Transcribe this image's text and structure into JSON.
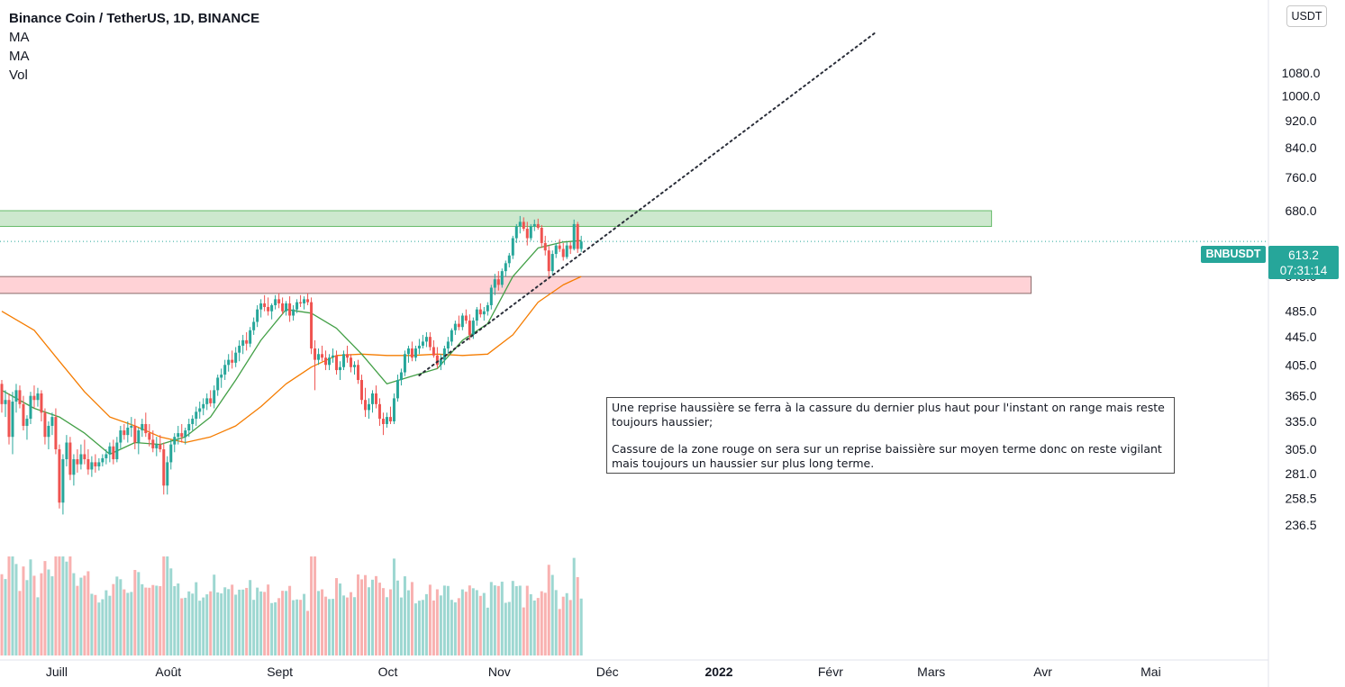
{
  "header": {
    "title": "Binance Coin / TetherUS, 1D, BINANCE",
    "indicators": [
      "MA",
      "MA",
      "Vol"
    ]
  },
  "price_scale": {
    "currency": "USDT",
    "symbol": "BNBUSDT",
    "last_price": "613.2",
    "countdown": "07:31:14"
  },
  "annotation": {
    "line1": "Une reprise haussière se ferra à la cassure du dernier plus haut pour l'instant on range mais reste toujours haussier;",
    "line2": "Cassure de la zone rouge on sera sur un reprise baissière sur moyen terme donc on reste vigilant mais toujours un haussier sur plus long terme."
  },
  "colors": {
    "up": "#26a69a",
    "down": "#ef5350",
    "ma_fast": "#43a047",
    "ma_slow": "#f57c00",
    "resistance_zone": "#c8e6c9",
    "support_zone": "#ffcdd2"
  },
  "chart_data": {
    "type": "candlestick",
    "title": "Binance Coin / TetherUS, 1D, BINANCE",
    "y_scale": "log",
    "y_ticks": [
      "1080.0",
      "1000.0",
      "920.0",
      "840.0",
      "760.0",
      "680.0",
      "545.0",
      "485.0",
      "445.0",
      "405.0",
      "365.0",
      "335.0",
      "305.0",
      "281.0",
      "258.5",
      "236.5"
    ],
    "x_ticks": [
      "Juill",
      "Août",
      "Sept",
      "Oct",
      "Nov",
      "Déc",
      "2022",
      "Févr",
      "Mars",
      "Avr",
      "Mai"
    ],
    "x_range": [
      "2021-06-19",
      "2022-05-31"
    ],
    "zones": [
      {
        "name": "resistance",
        "low": 645,
        "high": 680,
        "from": "2021-06-19",
        "to": "2022-03-21",
        "color": "green"
      },
      {
        "name": "support",
        "low": 515,
        "high": 545,
        "from": "2021-06-19",
        "to": "2022-04-01",
        "color": "red"
      }
    ],
    "trendline": {
      "from": {
        "date": "2021-10-13",
        "price": 391
      },
      "to": {
        "date": "2022-02-17",
        "price": 1240
      },
      "style": "dotted"
    },
    "candles": [
      [
        "2021-06-19",
        380,
        385,
        345,
        355
      ],
      [
        "2021-06-20",
        355,
        372,
        340,
        360
      ],
      [
        "2021-06-21",
        360,
        368,
        310,
        318
      ],
      [
        "2021-06-22",
        318,
        370,
        300,
        358
      ],
      [
        "2021-06-23",
        358,
        380,
        345,
        372
      ],
      [
        "2021-06-24",
        372,
        378,
        350,
        355
      ],
      [
        "2021-06-25",
        355,
        365,
        325,
        330
      ],
      [
        "2021-06-26",
        330,
        342,
        315,
        338
      ],
      [
        "2021-06-27",
        338,
        370,
        332,
        365
      ],
      [
        "2021-06-28",
        365,
        378,
        350,
        360
      ],
      [
        "2021-06-29",
        360,
        375,
        352,
        368
      ],
      [
        "2021-06-30",
        368,
        372,
        335,
        345
      ],
      [
        "2021-07-01",
        345,
        350,
        310,
        318
      ],
      [
        "2021-07-02",
        318,
        335,
        305,
        330
      ],
      [
        "2021-07-03",
        330,
        345,
        320,
        340
      ],
      [
        "2021-07-04",
        340,
        350,
        300,
        305
      ],
      [
        "2021-07-05",
        305,
        310,
        250,
        255
      ],
      [
        "2021-07-06",
        255,
        300,
        245,
        295
      ],
      [
        "2021-07-07",
        295,
        320,
        288,
        312
      ],
      [
        "2021-07-08",
        312,
        318,
        275,
        280
      ],
      [
        "2021-07-09",
        280,
        300,
        270,
        295
      ],
      [
        "2021-07-10",
        295,
        305,
        282,
        290
      ],
      [
        "2021-07-11",
        290,
        310,
        285,
        300
      ],
      [
        "2021-07-12",
        300,
        315,
        290,
        295
      ],
      [
        "2021-07-13",
        295,
        305,
        280,
        285
      ],
      [
        "2021-07-14",
        285,
        298,
        278,
        292
      ],
      [
        "2021-07-15",
        292,
        300,
        282,
        288
      ],
      [
        "2021-07-16",
        288,
        296,
        284,
        292
      ],
      [
        "2021-07-17",
        292,
        300,
        288,
        296
      ],
      [
        "2021-07-18",
        296,
        305,
        290,
        300
      ],
      [
        "2021-07-19",
        300,
        312,
        292,
        308
      ],
      [
        "2021-07-20",
        308,
        315,
        290,
        295
      ],
      [
        "2021-07-21",
        295,
        318,
        292,
        312
      ],
      [
        "2021-07-22",
        312,
        330,
        306,
        325
      ],
      [
        "2021-07-23",
        325,
        332,
        315,
        320
      ],
      [
        "2021-07-24",
        320,
        335,
        312,
        328
      ],
      [
        "2021-07-25",
        328,
        340,
        318,
        330
      ],
      [
        "2021-07-26",
        330,
        338,
        305,
        312
      ],
      [
        "2021-07-27",
        312,
        328,
        300,
        325
      ],
      [
        "2021-07-28",
        325,
        338,
        318,
        332
      ],
      [
        "2021-07-29",
        332,
        345,
        318,
        322
      ],
      [
        "2021-07-30",
        322,
        332,
        308,
        315
      ],
      [
        "2021-07-31",
        315,
        325,
        302,
        306
      ],
      [
        "2021-08-01",
        306,
        318,
        298,
        310
      ],
      [
        "2021-08-02",
        310,
        320,
        302,
        305
      ],
      [
        "2021-08-03",
        305,
        312,
        262,
        270
      ],
      [
        "2021-08-04",
        270,
        298,
        262,
        292
      ],
      [
        "2021-08-05",
        292,
        315,
        285,
        310
      ],
      [
        "2021-08-06",
        310,
        322,
        302,
        318
      ],
      [
        "2021-08-07",
        318,
        330,
        310,
        322
      ],
      [
        "2021-08-08",
        322,
        332,
        312,
        318
      ],
      [
        "2021-08-09",
        318,
        328,
        310,
        325
      ],
      [
        "2021-08-10",
        325,
        338,
        318,
        332
      ],
      [
        "2021-08-11",
        332,
        342,
        325,
        338
      ],
      [
        "2021-08-12",
        338,
        352,
        330,
        346
      ],
      [
        "2021-08-13",
        346,
        358,
        338,
        350
      ],
      [
        "2021-08-14",
        350,
        362,
        342,
        355
      ],
      [
        "2021-08-15",
        355,
        368,
        348,
        362
      ],
      [
        "2021-08-16",
        362,
        372,
        352,
        356
      ],
      [
        "2021-08-17",
        356,
        378,
        350,
        372
      ],
      [
        "2021-08-18",
        372,
        392,
        365,
        388
      ],
      [
        "2021-08-19",
        388,
        400,
        375,
        392
      ],
      [
        "2021-08-20",
        392,
        412,
        385,
        405
      ],
      [
        "2021-08-21",
        405,
        420,
        396,
        412
      ],
      [
        "2021-08-22",
        412,
        425,
        400,
        408
      ],
      [
        "2021-08-23",
        408,
        430,
        402,
        422
      ],
      [
        "2021-08-24",
        422,
        440,
        410,
        432
      ],
      [
        "2021-08-25",
        432,
        448,
        420,
        440
      ],
      [
        "2021-08-26",
        440,
        452,
        425,
        435
      ],
      [
        "2021-08-27",
        435,
        460,
        430,
        455
      ],
      [
        "2021-08-28",
        455,
        475,
        448,
        468
      ],
      [
        "2021-08-29",
        468,
        495,
        460,
        488
      ],
      [
        "2021-08-30",
        488,
        505,
        475,
        498
      ],
      [
        "2021-08-31",
        498,
        512,
        485,
        492
      ],
      [
        "2021-09-01",
        492,
        508,
        478,
        485
      ],
      [
        "2021-09-02",
        485,
        498,
        472,
        495
      ],
      [
        "2021-09-03",
        495,
        512,
        488,
        505
      ],
      [
        "2021-09-04",
        505,
        515,
        490,
        498
      ],
      [
        "2021-09-05",
        498,
        508,
        480,
        485
      ],
      [
        "2021-09-06",
        485,
        502,
        478,
        498
      ],
      [
        "2021-09-07",
        498,
        510,
        468,
        478
      ],
      [
        "2021-09-08",
        478,
        495,
        470,
        488
      ],
      [
        "2021-09-09",
        488,
        505,
        482,
        500
      ],
      [
        "2021-09-10",
        500,
        512,
        492,
        498
      ],
      [
        "2021-09-11",
        498,
        510,
        488,
        505
      ],
      [
        "2021-09-12",
        505,
        515,
        495,
        500
      ],
      [
        "2021-09-13",
        500,
        508,
        420,
        428
      ],
      [
        "2021-09-14",
        428,
        440,
        372,
        412
      ],
      [
        "2021-09-15",
        412,
        428,
        405,
        420
      ],
      [
        "2021-09-16",
        420,
        432,
        410,
        415
      ],
      [
        "2021-09-17",
        415,
        425,
        398,
        405
      ],
      [
        "2021-09-18",
        405,
        420,
        398,
        415
      ],
      [
        "2021-09-19",
        415,
        428,
        408,
        418
      ],
      [
        "2021-09-20",
        418,
        425,
        392,
        398
      ],
      [
        "2021-09-21",
        398,
        410,
        385,
        402
      ],
      [
        "2021-09-22",
        402,
        425,
        398,
        420
      ],
      [
        "2021-09-23",
        420,
        432,
        408,
        415
      ],
      [
        "2021-09-24",
        415,
        420,
        395,
        402
      ],
      [
        "2021-09-25",
        402,
        410,
        392,
        405
      ],
      [
        "2021-09-26",
        405,
        412,
        380,
        385
      ],
      [
        "2021-09-27",
        385,
        392,
        355,
        360
      ],
      [
        "2021-09-28",
        360,
        375,
        340,
        348
      ],
      [
        "2021-09-29",
        348,
        362,
        338,
        355
      ],
      [
        "2021-09-30",
        355,
        372,
        345,
        368
      ],
      [
        "2021-10-01",
        368,
        378,
        350,
        355
      ],
      [
        "2021-10-02",
        355,
        362,
        330,
        338
      ],
      [
        "2021-10-03",
        338,
        345,
        320,
        332
      ],
      [
        "2021-10-04",
        332,
        345,
        328,
        340
      ],
      [
        "2021-10-05",
        340,
        352,
        332,
        335
      ],
      [
        "2021-10-06",
        335,
        368,
        332,
        362
      ],
      [
        "2021-10-07",
        362,
        392,
        358,
        385
      ],
      [
        "2021-10-08",
        385,
        400,
        378,
        395
      ],
      [
        "2021-10-09",
        395,
        425,
        390,
        420
      ],
      [
        "2021-10-10",
        420,
        432,
        408,
        428
      ],
      [
        "2021-10-11",
        428,
        438,
        410,
        415
      ],
      [
        "2021-10-12",
        415,
        432,
        410,
        428
      ],
      [
        "2021-10-13",
        428,
        442,
        420,
        432
      ],
      [
        "2021-10-14",
        432,
        448,
        428,
        438
      ],
      [
        "2021-10-15",
        438,
        452,
        430,
        445
      ],
      [
        "2021-10-16",
        445,
        452,
        425,
        430
      ],
      [
        "2021-10-17",
        430,
        440,
        415,
        418
      ],
      [
        "2021-10-18",
        418,
        430,
        400,
        405
      ],
      [
        "2021-10-19",
        405,
        420,
        398,
        412
      ],
      [
        "2021-10-20",
        412,
        432,
        405,
        428
      ],
      [
        "2021-10-21",
        428,
        445,
        420,
        438
      ],
      [
        "2021-10-22",
        438,
        458,
        432,
        455
      ],
      [
        "2021-10-23",
        455,
        470,
        448,
        465
      ],
      [
        "2021-10-24",
        465,
        478,
        455,
        460
      ],
      [
        "2021-10-25",
        460,
        482,
        455,
        478
      ],
      [
        "2021-10-26",
        478,
        488,
        465,
        470
      ],
      [
        "2021-10-27",
        470,
        480,
        440,
        448
      ],
      [
        "2021-10-28",
        448,
        475,
        442,
        470
      ],
      [
        "2021-10-29",
        470,
        492,
        462,
        488
      ],
      [
        "2021-10-30",
        488,
        498,
        475,
        480
      ],
      [
        "2021-10-31",
        480,
        492,
        470,
        485
      ],
      [
        "2021-11-01",
        485,
        500,
        478,
        495
      ],
      [
        "2021-11-02",
        495,
        530,
        488,
        525
      ],
      [
        "2021-11-03",
        525,
        550,
        512,
        540
      ],
      [
        "2021-11-04",
        540,
        555,
        520,
        530
      ],
      [
        "2021-11-05",
        530,
        560,
        525,
        555
      ],
      [
        "2021-11-06",
        555,
        575,
        545,
        570
      ],
      [
        "2021-11-07",
        570,
        590,
        562,
        585
      ],
      [
        "2021-11-08",
        585,
        625,
        578,
        620
      ],
      [
        "2021-11-09",
        620,
        650,
        610,
        645
      ],
      [
        "2021-11-10",
        645,
        668,
        630,
        655
      ],
      [
        "2021-11-11",
        655,
        665,
        635,
        640
      ],
      [
        "2021-11-12",
        640,
        655,
        605,
        620
      ],
      [
        "2021-11-13",
        620,
        650,
        615,
        645
      ],
      [
        "2021-11-14",
        645,
        660,
        635,
        650
      ],
      [
        "2021-11-15",
        650,
        662,
        638,
        642
      ],
      [
        "2021-11-16",
        642,
        648,
        600,
        610
      ],
      [
        "2021-11-17",
        610,
        625,
        585,
        595
      ],
      [
        "2021-11-18",
        595,
        605,
        540,
        555
      ],
      [
        "2021-11-19",
        555,
        595,
        548,
        588
      ],
      [
        "2021-11-20",
        588,
        610,
        580,
        605
      ],
      [
        "2021-11-21",
        605,
        618,
        592,
        598
      ],
      [
        "2021-11-22",
        598,
        610,
        575,
        582
      ],
      [
        "2021-11-23",
        582,
        612,
        578,
        605
      ],
      [
        "2021-11-24",
        605,
        612,
        588,
        598
      ],
      [
        "2021-11-25",
        598,
        660,
        595,
        650
      ],
      [
        "2021-11-26",
        650,
        655,
        590,
        598
      ],
      [
        "2021-11-27",
        598,
        625,
        592,
        613.2
      ]
    ],
    "ma_fast": [
      [
        "2021-06-19",
        372
      ],
      [
        "2021-06-28",
        350
      ],
      [
        "2021-07-05",
        340
      ],
      [
        "2021-07-12",
        322
      ],
      [
        "2021-07-19",
        300
      ],
      [
        "2021-07-26",
        312
      ],
      [
        "2021-08-02",
        310
      ],
      [
        "2021-08-09",
        318
      ],
      [
        "2021-08-16",
        340
      ],
      [
        "2021-08-23",
        385
      ],
      [
        "2021-08-30",
        440
      ],
      [
        "2021-09-06",
        488
      ],
      [
        "2021-09-13",
        482
      ],
      [
        "2021-09-20",
        458
      ],
      [
        "2021-09-27",
        420
      ],
      [
        "2021-10-04",
        380
      ],
      [
        "2021-10-11",
        390
      ],
      [
        "2021-10-18",
        400
      ],
      [
        "2021-10-25",
        440
      ],
      [
        "2021-11-01",
        465
      ],
      [
        "2021-11-08",
        545
      ],
      [
        "2021-11-15",
        600
      ],
      [
        "2021-11-22",
        612
      ],
      [
        "2021-11-27",
        615
      ]
    ],
    "ma_slow": [
      [
        "2021-06-19",
        485
      ],
      [
        "2021-06-28",
        455
      ],
      [
        "2021-07-05",
        410
      ],
      [
        "2021-07-12",
        370
      ],
      [
        "2021-07-19",
        340
      ],
      [
        "2021-07-26",
        330
      ],
      [
        "2021-08-02",
        318
      ],
      [
        "2021-08-09",
        312
      ],
      [
        "2021-08-16",
        318
      ],
      [
        "2021-08-23",
        330
      ],
      [
        "2021-08-30",
        352
      ],
      [
        "2021-09-06",
        380
      ],
      [
        "2021-09-13",
        402
      ],
      [
        "2021-09-20",
        418
      ],
      [
        "2021-09-27",
        420
      ],
      [
        "2021-10-04",
        418
      ],
      [
        "2021-10-11",
        418
      ],
      [
        "2021-10-18",
        420
      ],
      [
        "2021-10-25",
        418
      ],
      [
        "2021-11-01",
        420
      ],
      [
        "2021-11-08",
        448
      ],
      [
        "2021-11-15",
        500
      ],
      [
        "2021-11-22",
        530
      ],
      [
        "2021-11-27",
        545
      ]
    ]
  }
}
